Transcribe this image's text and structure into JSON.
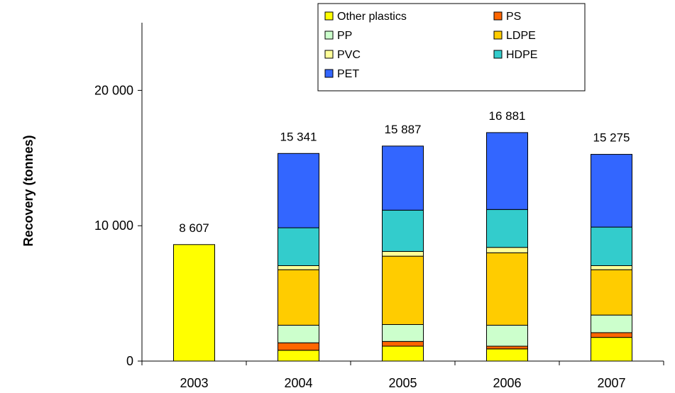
{
  "chart_data": {
    "type": "bar",
    "stacked": true,
    "title": "",
    "xlabel": "",
    "ylabel": "Recovery (tonnes)",
    "ylim": [
      0,
      25000
    ],
    "yticks": [
      0,
      10000,
      20000
    ],
    "ytick_labels": [
      "0",
      "10 000",
      "20 000"
    ],
    "categories": [
      "2003",
      "2004",
      "2005",
      "2006",
      "2007"
    ],
    "totals": [
      8607,
      15341,
      15887,
      16881,
      15275
    ],
    "total_labels": [
      "8 607",
      "15 341",
      "15 887",
      "16 881",
      "15 275"
    ],
    "legend_placement": "top-right",
    "series": [
      {
        "name": "Other plastics",
        "color": "#FFFF00",
        "values": [
          8607,
          800,
          1100,
          900,
          1750
        ]
      },
      {
        "name": "PS",
        "color": "#FF6600",
        "values": [
          0,
          550,
          350,
          200,
          350
        ]
      },
      {
        "name": "PP",
        "color": "#CCFFCC",
        "values": [
          0,
          1300,
          1250,
          1550,
          1300
        ]
      },
      {
        "name": "LDPE",
        "color": "#FFCC00",
        "values": [
          0,
          4100,
          5050,
          5350,
          3350
        ]
      },
      {
        "name": "PVC",
        "color": "#FFFF99",
        "values": [
          0,
          300,
          350,
          400,
          300
        ]
      },
      {
        "name": "HDPE",
        "color": "#33CCCC",
        "values": [
          0,
          2800,
          3050,
          2800,
          2850
        ]
      },
      {
        "name": "PET",
        "color": "#3366FF",
        "values": [
          0,
          5491,
          4737,
          5681,
          5375
        ]
      }
    ]
  }
}
